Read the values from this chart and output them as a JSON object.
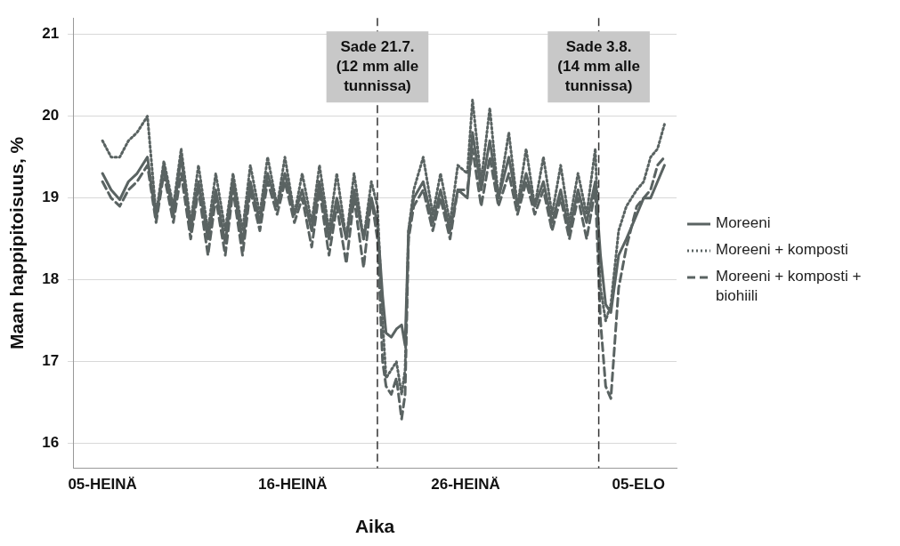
{
  "chart_data": {
    "type": "line",
    "xlabel": "Aika",
    "ylabel": "Maan happipitoisuus, %",
    "x": [
      "--07-05T00:00",
      "--07-05T12:00",
      "--07-06T00:00",
      "--07-06T12:00",
      "--07-07T00:00",
      "--07-07T14:24",
      "--07-08T02:24",
      "--07-08T13:12",
      "--07-09T02:24",
      "--07-09T13:12",
      "--07-10T02:24",
      "--07-10T13:12",
      "--07-11T02:24",
      "--07-11T13:12",
      "--07-12T02:24",
      "--07-12T13:12",
      "--07-13T02:24",
      "--07-13T13:12",
      "--07-14T02:24",
      "--07-14T13:12",
      "--07-15T02:24",
      "--07-15T13:12",
      "--07-16T02:24",
      "--07-16T13:12",
      "--07-17T02:24",
      "--07-17T13:12",
      "--07-18T02:24",
      "--07-18T13:12",
      "--07-19T02:24",
      "--07-19T13:12",
      "--07-20T02:24",
      "--07-20T13:12",
      "--07-20T21:36",
      "--07-21T04:48",
      "--07-21T09:36",
      "--07-21T16:48",
      "--07-22T00:00",
      "--07-22T07:12",
      "--07-22T12:00",
      "--07-22T16:48",
      "--07-23T00:00",
      "--07-23T13:12",
      "--07-24T02:24",
      "--07-24T13:12",
      "--07-25T02:24",
      "--07-25T13:12",
      "--07-26T02:24",
      "--07-26T09:36",
      "--07-26T21:36",
      "--07-27T09:36",
      "--07-27T21:36",
      "--07-28T12:00",
      "--07-29T00:00",
      "--07-29T12:00",
      "--07-30T00:00",
      "--07-30T12:00",
      "--07-31T00:00",
      "--07-31T12:00",
      "--08-01T00:00",
      "--08-01T12:00",
      "--08-02T00:00",
      "--08-02T12:00",
      "--08-02T19:12",
      "--08-03T02:24",
      "--08-03T09:36",
      "--08-03T20:24",
      "--08-04T07:12",
      "--08-04T21:36",
      "--08-05T07:12",
      "--08-05T16:48",
      "--08-06T02:24",
      "--08-06T12:00"
    ],
    "series": [
      {
        "name": "Moreeni",
        "color": "#5a6362",
        "line_style": "solid",
        "values": [
          19.3,
          19.1,
          18.98,
          19.2,
          19.3,
          19.5,
          18.75,
          19.4,
          18.8,
          19.5,
          18.6,
          19.2,
          18.5,
          19.1,
          18.45,
          19.2,
          18.45,
          19.2,
          18.7,
          19.3,
          18.9,
          19.3,
          18.8,
          19.1,
          18.6,
          19.2,
          18.5,
          19.0,
          18.5,
          19.1,
          18.5,
          19.0,
          18.7,
          17.8,
          17.35,
          17.3,
          17.4,
          17.45,
          17.2,
          18.6,
          19.0,
          19.2,
          18.7,
          19.1,
          18.6,
          19.1,
          19.0,
          19.8,
          19.1,
          19.7,
          19.0,
          19.5,
          18.9,
          19.3,
          18.9,
          19.2,
          18.7,
          19.1,
          18.6,
          19.1,
          18.7,
          19.2,
          18.3,
          17.7,
          17.6,
          18.3,
          18.5,
          18.8,
          19.0,
          19.0,
          19.2,
          19.4
        ]
      },
      {
        "name": "Moreeni + komposti",
        "color": "#5a6362",
        "line_style": "dotted",
        "values": [
          19.7,
          19.5,
          19.5,
          19.7,
          19.8,
          20.0,
          18.8,
          19.45,
          18.9,
          19.6,
          18.7,
          19.4,
          18.6,
          19.3,
          18.6,
          19.3,
          18.6,
          19.4,
          18.8,
          19.5,
          18.9,
          19.5,
          18.8,
          19.3,
          18.7,
          19.4,
          18.6,
          19.3,
          18.5,
          19.3,
          18.5,
          19.2,
          18.9,
          17.5,
          16.8,
          16.9,
          17.0,
          16.6,
          16.9,
          18.6,
          19.1,
          19.5,
          18.8,
          19.3,
          18.7,
          19.4,
          19.3,
          20.2,
          19.2,
          20.1,
          19.0,
          19.8,
          18.9,
          19.6,
          18.9,
          19.5,
          18.8,
          19.4,
          18.7,
          19.3,
          18.8,
          19.6,
          17.9,
          17.5,
          17.7,
          18.6,
          18.9,
          19.1,
          19.2,
          19.5,
          19.6,
          19.9
        ]
      },
      {
        "name": "Moreeni + komposti + biohiili",
        "color": "#5a6362",
        "line_style": "dashed",
        "values": [
          19.2,
          19.0,
          18.9,
          19.1,
          19.2,
          19.4,
          18.7,
          19.3,
          18.7,
          19.3,
          18.5,
          19.1,
          18.3,
          19.0,
          18.3,
          19.1,
          18.3,
          19.1,
          18.6,
          19.2,
          18.8,
          19.2,
          18.7,
          19.0,
          18.4,
          19.1,
          18.3,
          18.9,
          18.2,
          19.0,
          18.15,
          19.0,
          18.5,
          17.0,
          16.7,
          16.6,
          16.8,
          16.3,
          16.6,
          18.5,
          18.9,
          19.1,
          18.6,
          19.0,
          18.5,
          19.1,
          19.1,
          19.6,
          18.9,
          19.5,
          18.9,
          19.3,
          18.8,
          19.2,
          18.8,
          19.1,
          18.6,
          19.0,
          18.5,
          19.0,
          18.5,
          19.1,
          17.5,
          16.7,
          16.55,
          17.9,
          18.4,
          18.9,
          19.0,
          19.1,
          19.4,
          19.5
        ]
      }
    ],
    "xlim": [
      "--07-03T07:12",
      "--08-07T04:48"
    ],
    "xticks": [
      {
        "value": "--07-05",
        "label": "05-HEINÄ"
      },
      {
        "value": "--07-16",
        "label": "16-HEINÄ"
      },
      {
        "value": "--07-26",
        "label": "26-HEINÄ"
      },
      {
        "value": "--08-05",
        "label": "05-ELO"
      }
    ],
    "ylim": [
      15.7,
      21.2
    ],
    "yticks": [
      16,
      17,
      18,
      19,
      20,
      21
    ],
    "grid": "y",
    "legend": "right",
    "ref_lines": [
      {
        "axis": "x",
        "value": "--07-20T21:36",
        "label": "Sade 21.7.\n(12 mm alle\ntunnissa)",
        "color": "#333333",
        "line_style": "dashed"
      },
      {
        "axis": "x",
        "value": "--08-02T16:48",
        "label": "Sade 3.8.\n(14 mm alle\ntunnissa)",
        "color": "#333333",
        "line_style": "dashed"
      }
    ]
  }
}
